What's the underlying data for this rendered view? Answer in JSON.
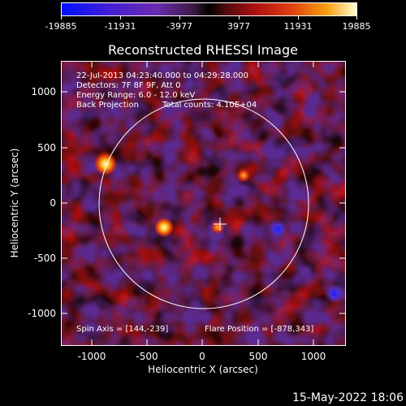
{
  "colorbar": {
    "ticks": [
      "-19885",
      "-11931",
      "-3977",
      "3977",
      "11931",
      "19885"
    ]
  },
  "plot": {
    "title": "Reconstructed RHESSI Image",
    "x_axis_title": "Heliocentric X (arcsec)",
    "y_axis_title": "Heliocentric Y (arcsec)",
    "x_ticks": [
      "-1000",
      "-500",
      "0",
      "500",
      "1000"
    ],
    "y_ticks": [
      "1000",
      "500",
      "0",
      "-500",
      "-1000"
    ]
  },
  "info": {
    "time_range": "22-Jul-2013 04:23:40.000 to 04:29:28.000",
    "detectors": "Detectors: 7F 8F 9F, Att 0",
    "energy": "Energy Range: 6.0 - 12.0 keV",
    "method": "Back Projection",
    "counts": "Total counts: 4.10E+04",
    "spin_axis": "Spin Axis = [144,-239]",
    "flare_position": "Flare Position = [-878,343]"
  },
  "footer": {
    "timestamp": "15-May-2022 18:06"
  }
}
